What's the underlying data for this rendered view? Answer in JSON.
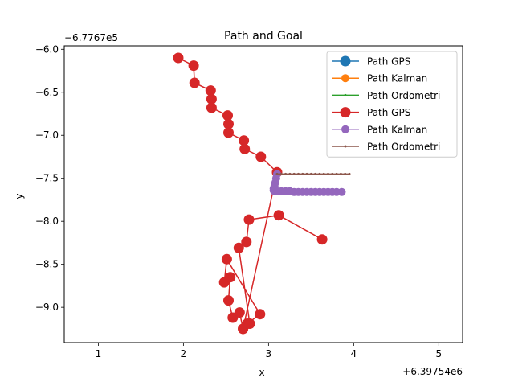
{
  "chart_data": {
    "type": "line",
    "title": "Path and Goal",
    "xlabel": "x",
    "ylabel": "y",
    "x_offset_label": "+6.39754e6",
    "y_offset_label": "−6.7767e5",
    "xlim": [
      0.6,
      5.28
    ],
    "ylim": [
      -9.41,
      -5.96
    ],
    "x_ticks": [
      1,
      2,
      3,
      4,
      5
    ],
    "x_tick_labels": [
      "1",
      "2",
      "3",
      "4",
      "5"
    ],
    "y_ticks": [
      -6.0,
      -6.5,
      -7.0,
      -7.5,
      -8.0,
      -8.5,
      -9.0
    ],
    "y_tick_labels": [
      "−6.0",
      "−6.5",
      "−7.0",
      "−7.5",
      "−8.0",
      "−8.5",
      "−9.0"
    ],
    "grid": false,
    "legend_position": "top-right",
    "series": [
      {
        "name": "Path GPS",
        "color": "#1f77b4",
        "marker": "circle-large",
        "x": [],
        "y": []
      },
      {
        "name": "Path Kalman",
        "color": "#ff7f0e",
        "marker": "circle-medium",
        "x": [],
        "y": []
      },
      {
        "name": "Path Ordometri",
        "color": "#2ca02c",
        "marker": "dot",
        "x": [],
        "y": []
      },
      {
        "name": "Path GPS",
        "color": "#d62728",
        "marker": "circle-large",
        "x": [
          1.94,
          2.12,
          2.13,
          2.32,
          2.33,
          2.33,
          2.52,
          2.53,
          2.53,
          2.71,
          2.72,
          2.91,
          3.1,
          2.7,
          2.75,
          2.9,
          2.51,
          2.48,
          2.55,
          2.53,
          2.58,
          2.66,
          2.7,
          2.78,
          2.65,
          2.74,
          2.77,
          3.12,
          3.63
        ],
        "y": [
          -6.1,
          -6.19,
          -6.39,
          -6.48,
          -6.58,
          -6.68,
          -6.77,
          -6.87,
          -6.97,
          -7.06,
          -7.16,
          -7.25,
          -7.43,
          -9.25,
          -9.19,
          -9.08,
          -8.44,
          -8.71,
          -8.65,
          -8.92,
          -9.12,
          -9.06,
          -9.25,
          -9.19,
          -8.31,
          -8.24,
          -7.98,
          -7.93,
          -8.21
        ]
      },
      {
        "name": "Path Kalman",
        "color": "#9467bd",
        "marker": "circle-medium",
        "x": [
          3.1,
          3.09,
          3.08,
          3.07,
          3.06,
          3.06,
          3.07,
          3.1,
          3.15,
          3.2,
          3.25,
          3.3,
          3.35,
          3.4,
          3.45,
          3.5,
          3.55,
          3.6,
          3.65,
          3.7,
          3.75,
          3.8,
          3.86
        ],
        "y": [
          -7.45,
          -7.5,
          -7.55,
          -7.59,
          -7.62,
          -7.64,
          -7.65,
          -7.65,
          -7.65,
          -7.65,
          -7.65,
          -7.66,
          -7.66,
          -7.66,
          -7.66,
          -7.66,
          -7.66,
          -7.66,
          -7.66,
          -7.66,
          -7.66,
          -7.66,
          -7.66
        ]
      },
      {
        "name": "Path Ordometri",
        "color": "#8c564b",
        "marker": "dot",
        "x": [
          3.1,
          3.15,
          3.2,
          3.25,
          3.3,
          3.35,
          3.4,
          3.45,
          3.5,
          3.55,
          3.6,
          3.65,
          3.7,
          3.75,
          3.8,
          3.85,
          3.9,
          3.95
        ],
        "y": [
          -7.45,
          -7.45,
          -7.45,
          -7.45,
          -7.45,
          -7.45,
          -7.45,
          -7.45,
          -7.45,
          -7.45,
          -7.45,
          -7.45,
          -7.45,
          -7.45,
          -7.45,
          -7.45,
          -7.45,
          -7.45
        ]
      }
    ]
  }
}
